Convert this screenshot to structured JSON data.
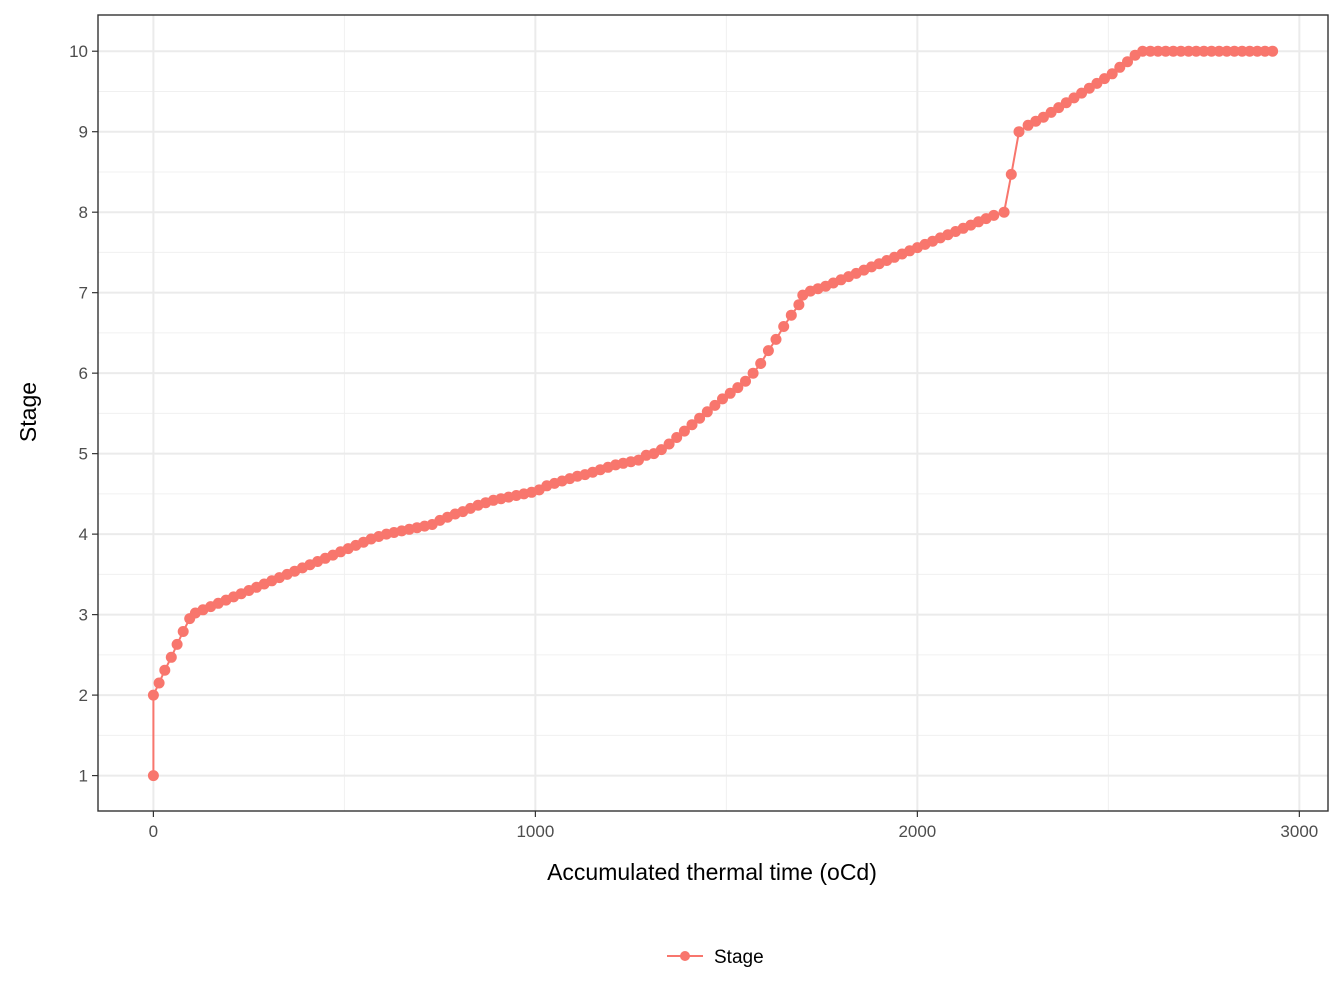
{
  "chart_data": {
    "type": "line",
    "xlabel": "Accumulated thermal time (oCd)",
    "ylabel": "Stage",
    "xlim": [
      -145,
      3075
    ],
    "ylim": [
      0.56,
      10.45
    ],
    "x_ticks": [
      0,
      1000,
      2000,
      3000
    ],
    "y_ticks": [
      1,
      2,
      3,
      4,
      5,
      6,
      7,
      8,
      9,
      10
    ],
    "grid": true,
    "legend_position": "bottom",
    "series": [
      {
        "name": "Stage",
        "color": "#F8766D",
        "marker": "circle",
        "points": [
          [
            0,
            1
          ],
          [
            0,
            2
          ],
          [
            15,
            2.15
          ],
          [
            30,
            2.31
          ],
          [
            47,
            2.47
          ],
          [
            62,
            2.63
          ],
          [
            78,
            2.79
          ],
          [
            95,
            2.95
          ],
          [
            110,
            3.02
          ],
          [
            130,
            3.06
          ],
          [
            150,
            3.1
          ],
          [
            170,
            3.14
          ],
          [
            190,
            3.18
          ],
          [
            210,
            3.22
          ],
          [
            230,
            3.26
          ],
          [
            250,
            3.3
          ],
          [
            270,
            3.34
          ],
          [
            290,
            3.38
          ],
          [
            310,
            3.42
          ],
          [
            330,
            3.46
          ],
          [
            350,
            3.5
          ],
          [
            370,
            3.54
          ],
          [
            390,
            3.58
          ],
          [
            410,
            3.62
          ],
          [
            430,
            3.66
          ],
          [
            450,
            3.7
          ],
          [
            470,
            3.74
          ],
          [
            490,
            3.78
          ],
          [
            510,
            3.82
          ],
          [
            530,
            3.86
          ],
          [
            550,
            3.9
          ],
          [
            570,
            3.94
          ],
          [
            590,
            3.97
          ],
          [
            610,
            4.0
          ],
          [
            630,
            4.02
          ],
          [
            650,
            4.04
          ],
          [
            670,
            4.06
          ],
          [
            690,
            4.08
          ],
          [
            710,
            4.1
          ],
          [
            730,
            4.12
          ],
          [
            750,
            4.17
          ],
          [
            770,
            4.21
          ],
          [
            790,
            4.25
          ],
          [
            810,
            4.28
          ],
          [
            830,
            4.32
          ],
          [
            850,
            4.36
          ],
          [
            870,
            4.39
          ],
          [
            890,
            4.42
          ],
          [
            910,
            4.44
          ],
          [
            930,
            4.46
          ],
          [
            950,
            4.48
          ],
          [
            970,
            4.5
          ],
          [
            990,
            4.52
          ],
          [
            1010,
            4.55
          ],
          [
            1030,
            4.6
          ],
          [
            1050,
            4.63
          ],
          [
            1070,
            4.66
          ],
          [
            1090,
            4.69
          ],
          [
            1110,
            4.72
          ],
          [
            1130,
            4.74
          ],
          [
            1150,
            4.77
          ],
          [
            1170,
            4.8
          ],
          [
            1190,
            4.83
          ],
          [
            1210,
            4.86
          ],
          [
            1230,
            4.88
          ],
          [
            1250,
            4.9
          ],
          [
            1270,
            4.92
          ],
          [
            1290,
            4.98
          ],
          [
            1310,
            5.0
          ],
          [
            1330,
            5.05
          ],
          [
            1350,
            5.12
          ],
          [
            1370,
            5.2
          ],
          [
            1390,
            5.28
          ],
          [
            1410,
            5.36
          ],
          [
            1430,
            5.44
          ],
          [
            1450,
            5.52
          ],
          [
            1470,
            5.6
          ],
          [
            1490,
            5.68
          ],
          [
            1510,
            5.75
          ],
          [
            1530,
            5.82
          ],
          [
            1550,
            5.9
          ],
          [
            1570,
            6.0
          ],
          [
            1590,
            6.12
          ],
          [
            1610,
            6.28
          ],
          [
            1630,
            6.42
          ],
          [
            1650,
            6.58
          ],
          [
            1670,
            6.72
          ],
          [
            1690,
            6.85
          ],
          [
            1700,
            6.97
          ],
          [
            1720,
            7.02
          ],
          [
            1740,
            7.05
          ],
          [
            1760,
            7.08
          ],
          [
            1780,
            7.12
          ],
          [
            1800,
            7.16
          ],
          [
            1820,
            7.2
          ],
          [
            1840,
            7.24
          ],
          [
            1860,
            7.28
          ],
          [
            1880,
            7.32
          ],
          [
            1900,
            7.36
          ],
          [
            1920,
            7.4
          ],
          [
            1940,
            7.44
          ],
          [
            1960,
            7.48
          ],
          [
            1980,
            7.52
          ],
          [
            2000,
            7.56
          ],
          [
            2020,
            7.6
          ],
          [
            2040,
            7.64
          ],
          [
            2060,
            7.68
          ],
          [
            2080,
            7.72
          ],
          [
            2100,
            7.76
          ],
          [
            2120,
            7.8
          ],
          [
            2140,
            7.84
          ],
          [
            2160,
            7.88
          ],
          [
            2180,
            7.92
          ],
          [
            2200,
            7.96
          ],
          [
            2227,
            8.0
          ],
          [
            2246,
            8.47
          ],
          [
            2266,
            9.0
          ],
          [
            2290,
            9.08
          ],
          [
            2310,
            9.13
          ],
          [
            2330,
            9.18
          ],
          [
            2350,
            9.24
          ],
          [
            2370,
            9.3
          ],
          [
            2390,
            9.36
          ],
          [
            2410,
            9.42
          ],
          [
            2430,
            9.48
          ],
          [
            2450,
            9.54
          ],
          [
            2470,
            9.6
          ],
          [
            2490,
            9.66
          ],
          [
            2510,
            9.72
          ],
          [
            2530,
            9.8
          ],
          [
            2550,
            9.87
          ],
          [
            2570,
            9.95
          ],
          [
            2590,
            10.0
          ],
          [
            2610,
            10.0
          ],
          [
            2630,
            10.0
          ],
          [
            2650,
            10.0
          ],
          [
            2670,
            10.0
          ],
          [
            2690,
            10.0
          ],
          [
            2710,
            10.0
          ],
          [
            2730,
            10.0
          ],
          [
            2750,
            10.0
          ],
          [
            2770,
            10.0
          ],
          [
            2790,
            10.0
          ],
          [
            2810,
            10.0
          ],
          [
            2830,
            10.0
          ],
          [
            2850,
            10.0
          ],
          [
            2870,
            10.0
          ],
          [
            2890,
            10.0
          ],
          [
            2910,
            10.0
          ],
          [
            2930,
            10.0
          ]
        ]
      }
    ]
  }
}
